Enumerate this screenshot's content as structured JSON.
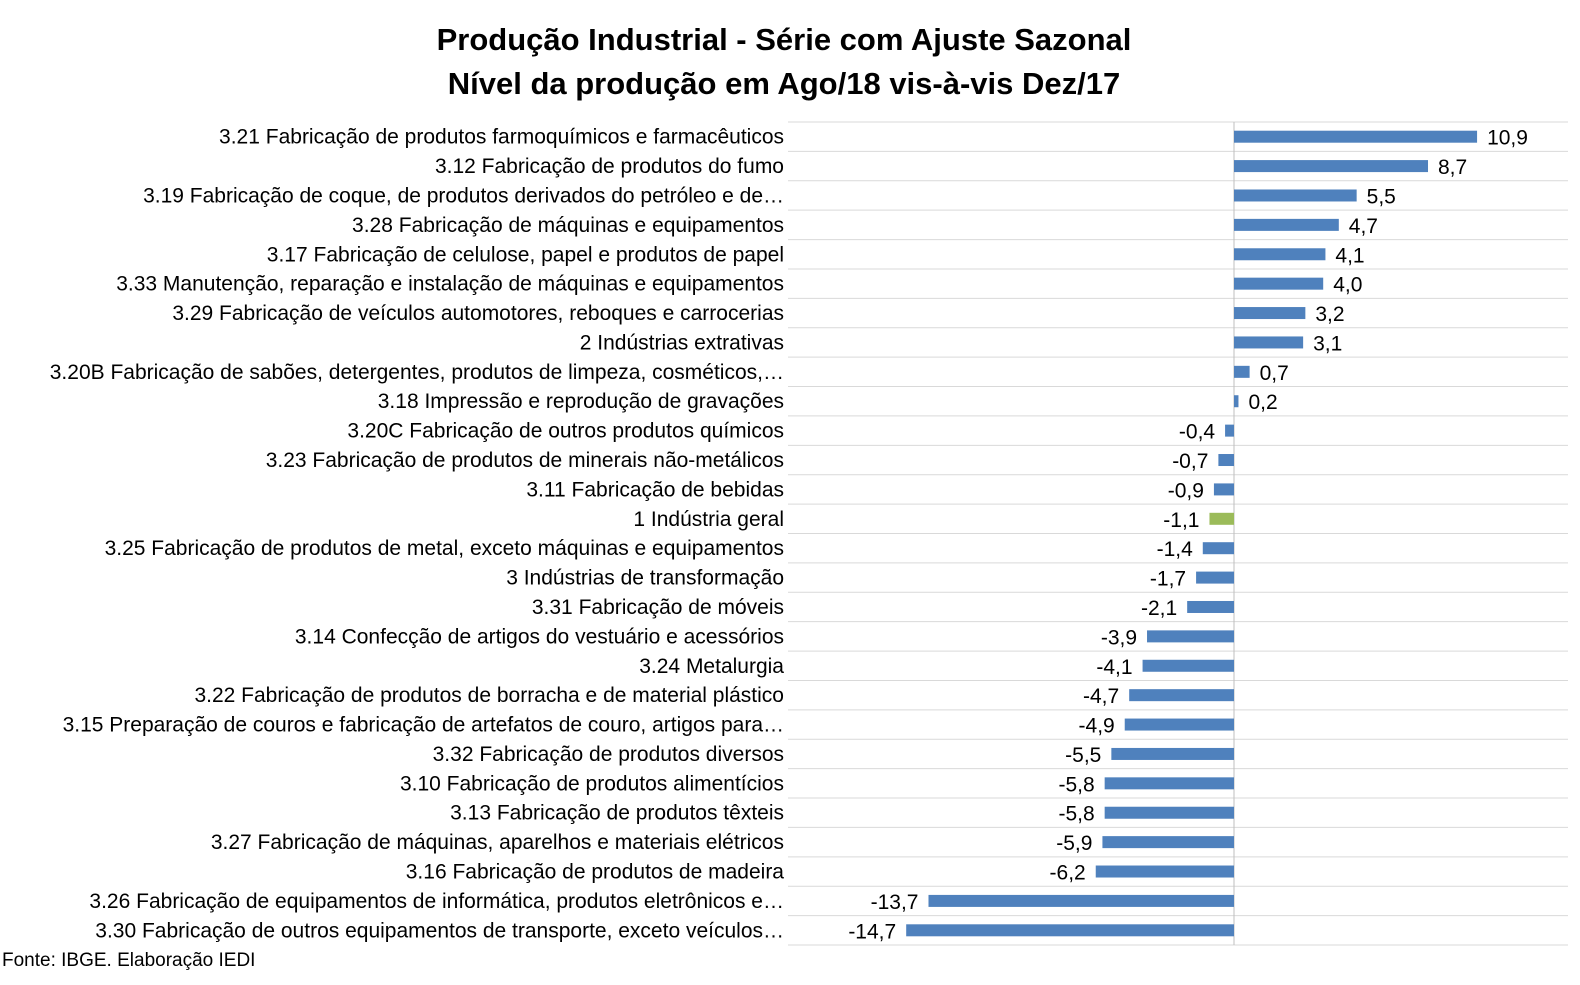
{
  "chart_data": {
    "type": "bar",
    "orientation": "horizontal",
    "title": "Produção Industrial - Série com Ajuste Sazonal",
    "subtitle": "Nível da produção em Ago/18 vis-à-vis Dez/17",
    "categories": [
      "3.21 Fabricação de produtos farmoquímicos e farmacêuticos",
      "3.12 Fabricação de produtos do fumo",
      "3.19 Fabricação de coque, de produtos derivados do petróleo e de…",
      "3.28 Fabricação de máquinas e equipamentos",
      "3.17 Fabricação de celulose, papel e produtos de papel",
      "3.33 Manutenção, reparação e instalação de máquinas e equipamentos",
      "3.29 Fabricação de veículos automotores, reboques e carrocerias",
      "2 Indústrias extrativas",
      "3.20B Fabricação de sabões, detergentes, produtos de limpeza, cosméticos,…",
      "3.18 Impressão e reprodução de gravações",
      "3.20C Fabricação de outros produtos químicos",
      "3.23 Fabricação de produtos de minerais não-metálicos",
      "3.11 Fabricação de bebidas",
      "1 Indústria geral",
      "3.25 Fabricação de produtos de metal, exceto máquinas e equipamentos",
      "3 Indústrias de transformação",
      "3.31 Fabricação de móveis",
      "3.14 Confecção de artigos do vestuário e acessórios",
      "3.24 Metalurgia",
      "3.22 Fabricação de produtos de borracha e de material plástico",
      "3.15 Preparação de couros e fabricação de artefatos de couro, artigos para…",
      "3.32 Fabricação de produtos diversos",
      "3.10 Fabricação de produtos alimentícios",
      "3.13 Fabricação de produtos têxteis",
      "3.27 Fabricação de máquinas, aparelhos e materiais elétricos",
      "3.16 Fabricação de produtos de madeira",
      "3.26 Fabricação de equipamentos de informática, produtos eletrônicos e…",
      "3.30 Fabricação de outros equipamentos de transporte, exceto veículos…"
    ],
    "values": [
      10.9,
      8.7,
      5.5,
      4.7,
      4.1,
      4.0,
      3.2,
      3.1,
      0.7,
      0.2,
      -0.4,
      -0.7,
      -0.9,
      -1.1,
      -1.4,
      -1.7,
      -2.1,
      -3.9,
      -4.1,
      -4.7,
      -4.9,
      -5.5,
      -5.8,
      -5.8,
      -5.9,
      -6.2,
      -13.7,
      -14.7
    ],
    "data_labels": [
      "10,9",
      "8,7",
      "5,5",
      "4,7",
      "4,1",
      "4,0",
      "3,2",
      "3,1",
      "0,7",
      "0,2",
      "-0,4",
      "-0,7",
      "-0,9",
      "-1,1",
      "-1,4",
      "-1,7",
      "-2,1",
      "-3,9",
      "-4,1",
      "-4,7",
      "-4,9",
      "-5,5",
      "-5,8",
      "-5,8",
      "-5,9",
      "-6,2",
      "-13,7",
      "-14,7"
    ],
    "highlight_index": 13,
    "colors": {
      "bar": "#4F81BD",
      "highlight": "#9BBB59",
      "gridline": "#D9D9D9",
      "axis": "#BFBFBF"
    },
    "grid": true,
    "legend": false,
    "xlim": [
      -15,
      15
    ]
  },
  "source": "Fonte: IBGE. Elaboração IEDI"
}
